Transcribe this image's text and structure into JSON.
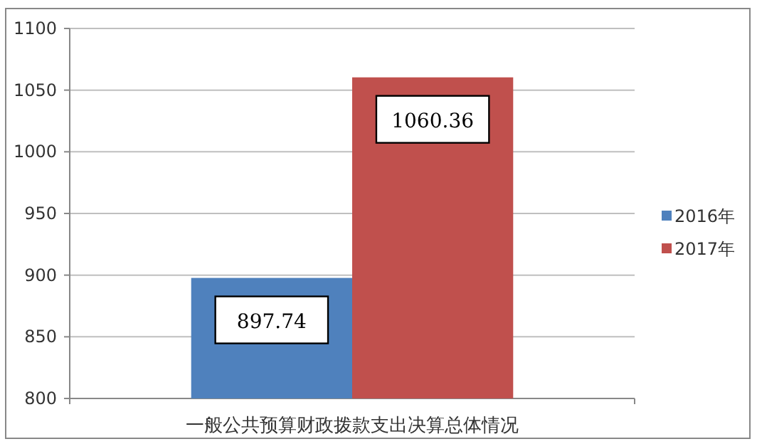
{
  "chart_data": {
    "type": "bar",
    "categories": [
      "一般公共预算财政拨款支出决算总体情况"
    ],
    "series": [
      {
        "name": "2016年",
        "color": "#4f81bd",
        "values": [
          897.74
        ]
      },
      {
        "name": "2017年",
        "color": "#c0504d",
        "values": [
          1060.36
        ]
      }
    ],
    "ylim": [
      800,
      1100
    ],
    "yticks": [
      800,
      850,
      900,
      950,
      1000,
      1050,
      1100
    ],
    "grid": "y",
    "legend": "right",
    "data_labels": true
  }
}
